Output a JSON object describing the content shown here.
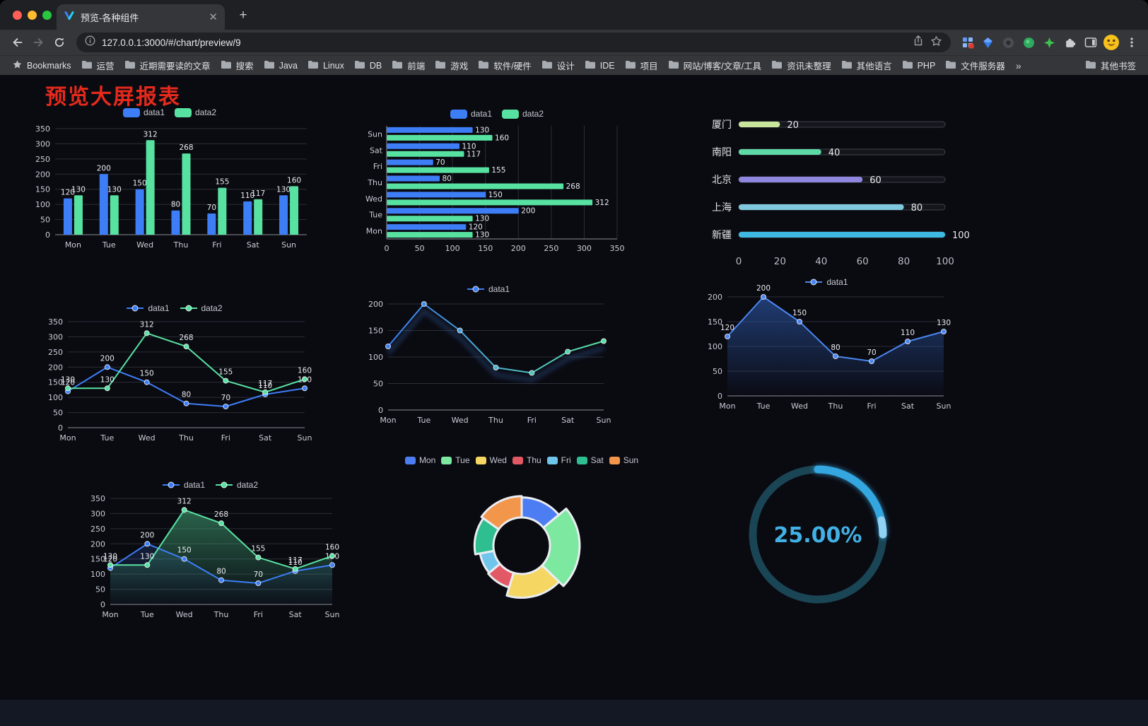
{
  "browser": {
    "tab_title": "预览-各种组件",
    "url": "127.0.0.1:3000/#/chart/preview/9",
    "bookmarks_label": "Bookmarks",
    "bookmarks": [
      "运营",
      "近期需要读的文章",
      "搜索",
      "Java",
      "Linux",
      "DB",
      "前端",
      "游戏",
      "软件/硬件",
      "设计",
      "IDE",
      "项目",
      "网站/博客/文章/工具",
      "资讯未整理",
      "其他语言",
      "PHP",
      "文件服务器"
    ],
    "bookmarks_overflow": "»",
    "other_bookmarks": "其他书签"
  },
  "page": {
    "title": "预览大屏报表"
  },
  "chart_data": [
    {
      "id": "bar-grouped",
      "type": "bar",
      "categories": [
        "Mon",
        "Tue",
        "Wed",
        "Thu",
        "Fri",
        "Sat",
        "Sun"
      ],
      "series": [
        {
          "name": "data1",
          "color": "#3D7EF7",
          "values": [
            120,
            200,
            150,
            80,
            70,
            110,
            130
          ]
        },
        {
          "name": "data2",
          "color": "#58E2A2",
          "values": [
            130,
            130,
            312,
            268,
            155,
            117,
            160
          ]
        }
      ],
      "ylim": [
        0,
        350
      ],
      "ytick": 50,
      "labels": true,
      "grid": true,
      "legend_position": "top"
    },
    {
      "id": "bar-horizontal",
      "type": "bar-horizontal",
      "categories": [
        "Mon",
        "Tue",
        "Wed",
        "Thu",
        "Fri",
        "Sat",
        "Sun"
      ],
      "series": [
        {
          "name": "data1",
          "color": "#3D7EF7",
          "values": [
            120,
            200,
            150,
            80,
            70,
            110,
            130
          ]
        },
        {
          "name": "data2",
          "color": "#58E2A2",
          "values": [
            130,
            130,
            312,
            268,
            155,
            117,
            160
          ]
        }
      ],
      "xlim": [
        0,
        350
      ],
      "xtick": 50,
      "labels": true,
      "grid": true,
      "legend_position": "top"
    },
    {
      "id": "progress",
      "type": "progress-bars",
      "items": [
        {
          "label": "厦门",
          "value": 20,
          "color": "#C9E59B"
        },
        {
          "label": "南阳",
          "value": 40,
          "color": "#5ED9A6"
        },
        {
          "label": "北京",
          "value": 60,
          "color": "#8F86E0"
        },
        {
          "label": "上海",
          "value": 80,
          "color": "#7FC9DE"
        },
        {
          "label": "新疆",
          "value": 100,
          "color": "#3EB9E2"
        }
      ],
      "xlim": [
        0,
        100
      ],
      "xticks": [
        0,
        20,
        40,
        60,
        80,
        100
      ]
    },
    {
      "id": "line-two",
      "type": "line",
      "categories": [
        "Mon",
        "Tue",
        "Wed",
        "Thu",
        "Fri",
        "Sat",
        "Sun"
      ],
      "series": [
        {
          "name": "data1",
          "color": "#3D7EF7",
          "values": [
            120,
            200,
            150,
            80,
            70,
            110,
            130
          ]
        },
        {
          "name": "data2",
          "color": "#58E2A2",
          "values": [
            130,
            130,
            312,
            268,
            155,
            117,
            160
          ]
        }
      ],
      "ylim": [
        0,
        350
      ],
      "ytick": 50,
      "labels": true,
      "legend_position": "top"
    },
    {
      "id": "line-grad",
      "type": "line",
      "categories": [
        "Mon",
        "Tue",
        "Wed",
        "Thu",
        "Fri",
        "Sat",
        "Sun"
      ],
      "series": [
        {
          "name": "data1",
          "colors": [
            "#3D7EF7",
            "#58E2A2"
          ],
          "values": [
            120,
            200,
            150,
            80,
            70,
            110,
            130
          ]
        }
      ],
      "ylim": [
        0,
        200
      ],
      "ytick": 50,
      "labels": false,
      "shadow": true,
      "legend_position": "top"
    },
    {
      "id": "line-area",
      "type": "area",
      "categories": [
        "Mon",
        "Tue",
        "Wed",
        "Thu",
        "Fri",
        "Sat",
        "Sun"
      ],
      "series": [
        {
          "name": "data1",
          "color": "#4B86F0",
          "area": "#2F5EB4",
          "area_opacity": 0.6,
          "values": [
            120,
            200,
            150,
            80,
            70,
            110,
            130
          ]
        }
      ],
      "ylim": [
        0,
        200
      ],
      "ytick": 50,
      "labels": true,
      "legend_position": "top"
    },
    {
      "id": "line-two-area",
      "type": "line-area",
      "categories": [
        "Mon",
        "Tue",
        "Wed",
        "Thu",
        "Fri",
        "Sat",
        "Sun"
      ],
      "series": [
        {
          "name": "data1",
          "color": "#3D7EF7",
          "area": "#3D7EF7",
          "area_opacity": 0.18,
          "values": [
            120,
            200,
            150,
            80,
            70,
            110,
            130
          ]
        },
        {
          "name": "data2",
          "color": "#58E2A2",
          "area": "#4ABE86",
          "area_opacity": 0.5,
          "values": [
            130,
            130,
            312,
            268,
            155,
            117,
            160
          ]
        }
      ],
      "ylim": [
        0,
        350
      ],
      "ytick": 50,
      "labels": true,
      "legend_position": "top"
    },
    {
      "id": "rose",
      "type": "pie",
      "rose": true,
      "categories": [
        "Mon",
        "Tue",
        "Wed",
        "Thu",
        "Fri",
        "Sat",
        "Sun"
      ],
      "values": [
        120,
        200,
        150,
        80,
        70,
        110,
        130
      ],
      "colors": [
        "#4D7DF2",
        "#7DE89F",
        "#F6D662",
        "#E25965",
        "#6FC5EC",
        "#2FBE8F",
        "#F2964B"
      ],
      "inner_radius": 40,
      "outer_min": 48,
      "outer_max": 82,
      "border_color": "#E9EDF2",
      "legend_position": "top"
    },
    {
      "id": "gauge",
      "type": "gauge",
      "value": 25,
      "max": 100,
      "label": "25.00%",
      "color": "#34A7E0",
      "tail_color": "#8FD2F2",
      "track_color": "#1A4554",
      "text_color": "#41B1E5"
    }
  ]
}
